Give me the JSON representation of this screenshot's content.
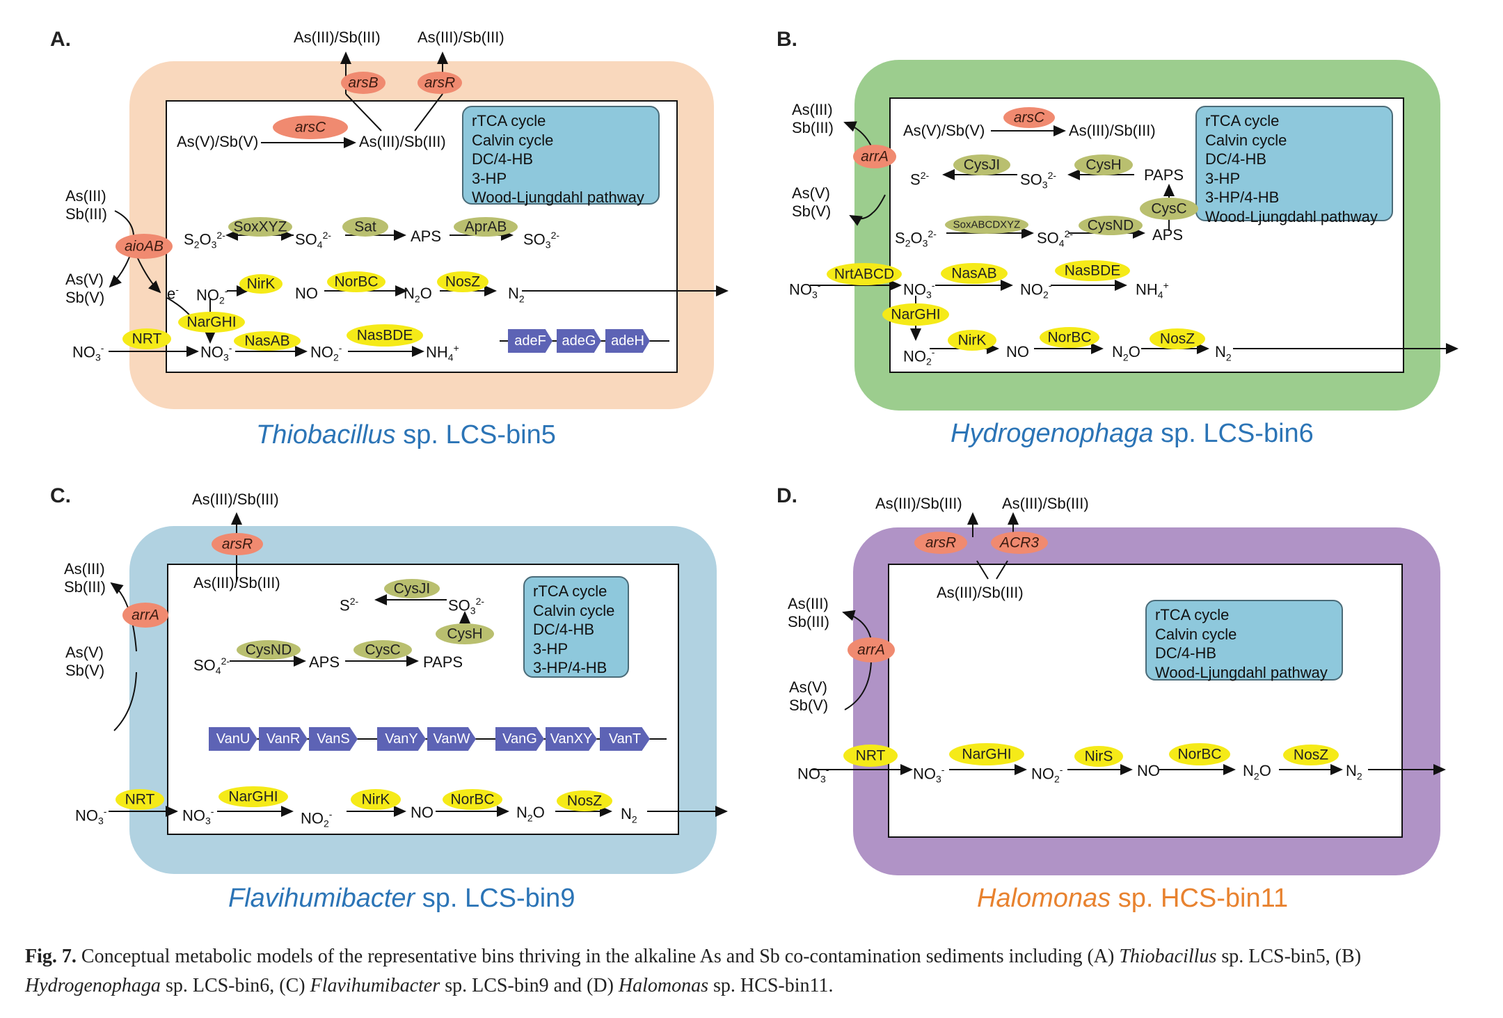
{
  "panel_labels": [
    "A.",
    "B.",
    "C.",
    "D."
  ],
  "captions": {
    "a": {
      "genus": "Thiobacillus",
      "rest": "sp. LCS-bin5",
      "color": "#2b74b6"
    },
    "b": {
      "genus": "Hydrogenophaga",
      "rest": "sp. LCS-bin6",
      "color": "#2b74b6"
    },
    "c": {
      "genus": "Flavihumibacter",
      "rest": "sp. LCS-bin9",
      "color": "#2b74b6"
    },
    "d": {
      "genus": "Halomonas",
      "rest": "sp. HCS-bin11",
      "color": "#e8822f"
    }
  },
  "membrane_colors": {
    "a": "#f9d8bd",
    "b": "#9ccd8e",
    "c": "#b1d2e1",
    "d": "#b093c6"
  },
  "cycles": {
    "a": [
      "rTCA cycle",
      "Calvin cycle",
      "DC/4-HB",
      "3-HP",
      "Wood-Ljungdahl pathway"
    ],
    "b": [
      "rTCA cycle",
      "Calvin cycle",
      "DC/4-HB",
      "3-HP",
      "3-HP/4-HB",
      "Wood-Ljungdahl pathway"
    ],
    "c": [
      "rTCA cycle",
      "Calvin cycle",
      "DC/4-HB",
      "3-HP",
      "3-HP/4-HB"
    ],
    "d": [
      "rTCA cycle",
      "Calvin cycle",
      "DC/4-HB",
      "Wood-Ljungdahl pathway"
    ]
  },
  "enzymes": {
    "arsB": "arsB",
    "arsR": "arsR",
    "arsC": "arsC",
    "aioAB": "aioAB",
    "arrA": "arrA",
    "ACR3": "ACR3",
    "SoxXYZ": "SoxXYZ",
    "Sat": "Sat",
    "AprAB": "AprAB",
    "SoxABCDXYZ": "SoxABCDXYZ",
    "CysJI": "CysJI",
    "CysH": "CysH",
    "CysC": "CysC",
    "CysND": "CysND",
    "NirK": "NirK",
    "NirS": "NirS",
    "NorBC": "NorBC",
    "NosZ": "NosZ",
    "NarGHI": "NarGHI",
    "NRT": "NRT",
    "NasAB": "NasAB",
    "NasBDE": "NasBDE",
    "NrtABCD": "NrtABCD"
  },
  "compounds": {
    "AsIII_SbIII": "As(III)/Sb(III)",
    "AsV_SbV": "As(V)/Sb(V)",
    "AsIII": "As(III)",
    "SbIII": "Sb(III)",
    "AsV": "As(V)",
    "SbV": "Sb(V)",
    "APS": "APS",
    "PAPS": "PAPS",
    "NO": "NO",
    "e": "e"
  },
  "genes": {
    "ade": [
      "adeF",
      "adeG",
      "adeH"
    ],
    "van": [
      "VanU",
      "VanR",
      "VanS",
      "VanY",
      "VanW",
      "VanG",
      "VanXY",
      "VanT"
    ]
  },
  "figure_caption": {
    "lead": "Fig. 7.",
    "text1": " Conceptual metabolic models of the representative bins thriving in the alkaline As and Sb co-contamination sediments including (A) ",
    "i1": "Thiobacillus",
    "text2": " sp. LCS-bin5, (B) ",
    "i2": "Hydrogenophaga",
    "text3": " sp. LCS-bin6, (C) ",
    "i3": "Flavihumibacter",
    "text4": " sp. LCS-bin9 and (D) ",
    "i4": "Halomonas",
    "text5": " sp. HCS-bin11."
  }
}
